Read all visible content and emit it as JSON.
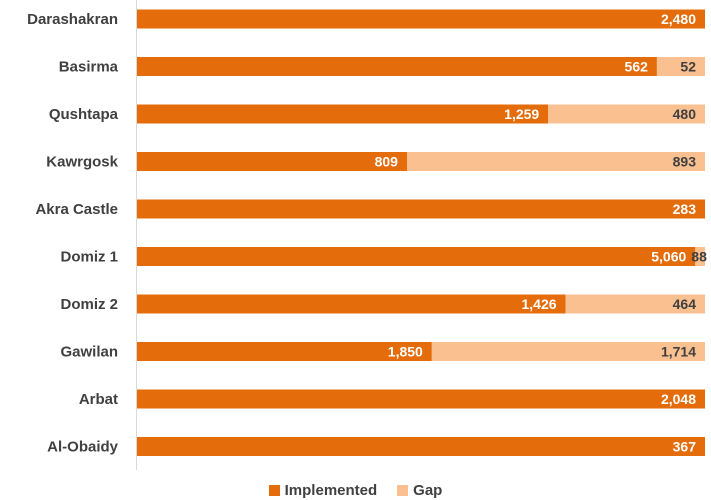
{
  "chart_data": {
    "type": "bar",
    "orientation": "horizontal",
    "stacked": "100%",
    "categories": [
      "Darashakran",
      "Basirma",
      "Qushtapa",
      "Kawrgosk",
      "Akra Castle",
      "Domiz 1",
      "Domiz 2",
      "Gawilan",
      "Arbat",
      "Al-Obaidy"
    ],
    "series": [
      {
        "name": "Implemented",
        "values": [
          2480,
          562,
          1259,
          809,
          283,
          5060,
          1426,
          1850,
          2048,
          367
        ],
        "labels": [
          "2,480",
          "562",
          "1,259",
          "809",
          "283",
          "5,060",
          "1,426",
          "1,850",
          "2,048",
          "367"
        ],
        "color": "#E46C0A",
        "label_color": "#ffffff"
      },
      {
        "name": "Gap",
        "values": [
          0,
          52,
          480,
          893,
          0,
          88,
          464,
          1714,
          0,
          0
        ],
        "labels": [
          "",
          "52",
          "480",
          "893",
          "",
          "88",
          "464",
          "1,714",
          "",
          ""
        ],
        "color": "#FAC090",
        "label_color": "#404040"
      }
    ],
    "xaxis_visible": false,
    "grid": false,
    "legend_position": "bottom"
  },
  "legend": [
    {
      "label": "Implemented",
      "color": "#E46C0A"
    },
    {
      "label": "Gap",
      "color": "#FAC090"
    }
  ]
}
